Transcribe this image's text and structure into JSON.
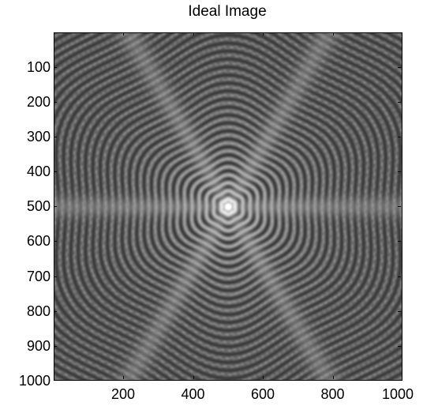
{
  "figure": {
    "title": "Ideal Image"
  },
  "image": {
    "description_kind": "diffraction-pattern",
    "colormap": "gray",
    "x_range": [
      1,
      1000
    ],
    "y_range": [
      1,
      1000
    ],
    "center": [
      500,
      500
    ],
    "spike_angles_deg": [
      0,
      60,
      120
    ]
  },
  "axes": {
    "y_ticks": [
      "100",
      "200",
      "300",
      "400",
      "500",
      "600",
      "700",
      "800",
      "900",
      "1000"
    ],
    "y_values": [
      100,
      200,
      300,
      400,
      500,
      600,
      700,
      800,
      900,
      1000
    ],
    "x_ticks": [
      "200",
      "400",
      "600",
      "800",
      "1000"
    ],
    "x_values": [
      200,
      400,
      600,
      800,
      1000
    ]
  }
}
